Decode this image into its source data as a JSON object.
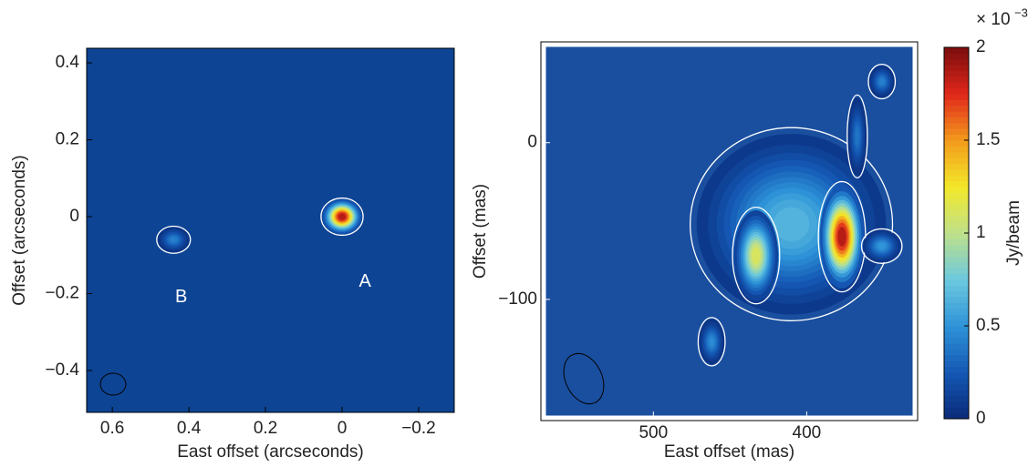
{
  "chart_data": [
    {
      "type": "image",
      "xlabel": "East offset (arcseconds)",
      "ylabel": "Offset (arcseconds)",
      "xlim": [
        0.667,
        -0.293
      ],
      "ylim": [
        -0.509,
        0.438
      ],
      "xticks": [
        0.6,
        0.4,
        0.2,
        0,
        {
          "value": -0.2,
          "label": "−0.2"
        }
      ],
      "yticks": [
        0.4,
        0.2,
        0,
        {
          "value": -0.2,
          "label": "−0.2"
        },
        {
          "value": -0.4,
          "label": "−0.4"
        }
      ],
      "background": "#0d4494",
      "sources": [
        {
          "x": 0,
          "y": 0,
          "peak": 2,
          "sx": 0.025,
          "sy": 0.022
        },
        {
          "x": 0.44,
          "y": -0.06,
          "peak": 0.45,
          "sx": 0.02,
          "sy": 0.016
        }
      ],
      "annotations": [
        {
          "text": "A",
          "x": -0.06,
          "y": -0.17
        },
        {
          "text": "B",
          "x": 0.42,
          "y": -0.21
        }
      ]
    },
    {
      "type": "image",
      "xlabel": "East offset (mas)",
      "ylabel": "Offset (mas)",
      "xlim": [
        571,
        330
      ],
      "ylim": [
        -175,
        62
      ],
      "xticks": [
        500,
        400
      ],
      "yticks": [
        0,
        {
          "value": -100,
          "label": "−100"
        }
      ],
      "background": "#1a4f9f",
      "sources": [
        {
          "x": 410,
          "y": -52,
          "peak": 0.7,
          "sx": 30,
          "sy": 28
        },
        {
          "x": 433,
          "y": -72,
          "peak": 1.2,
          "sx": 7,
          "sy": 14
        },
        {
          "x": 377,
          "y": -60,
          "peak": 2,
          "sx": 7,
          "sy": 16
        },
        {
          "x": 462,
          "y": -127,
          "peak": 0.5,
          "sx": 4,
          "sy": 7
        },
        {
          "x": 351,
          "y": -66,
          "peak": 0.55,
          "sx": 6,
          "sy": 5
        },
        {
          "x": 351,
          "y": 39,
          "peak": 0.45,
          "sx": 4,
          "sy": 5
        },
        {
          "x": 367,
          "y": 4,
          "peak": 0.4,
          "sx": 3,
          "sy": 12
        }
      ],
      "colorbar": {
        "label": "Jy/beam",
        "multiplier": "× 10",
        "exponent": "−3",
        "lim": [
          0,
          2
        ],
        "ticks": [
          0,
          0.5,
          1,
          1.5,
          2
        ],
        "colors": [
          "#0a2a78",
          "#1458b4",
          "#2e93d8",
          "#6cc9de",
          "#bfe08a",
          "#f3e829",
          "#f39a1c",
          "#e0271b",
          "#7a0d0d"
        ]
      }
    }
  ]
}
